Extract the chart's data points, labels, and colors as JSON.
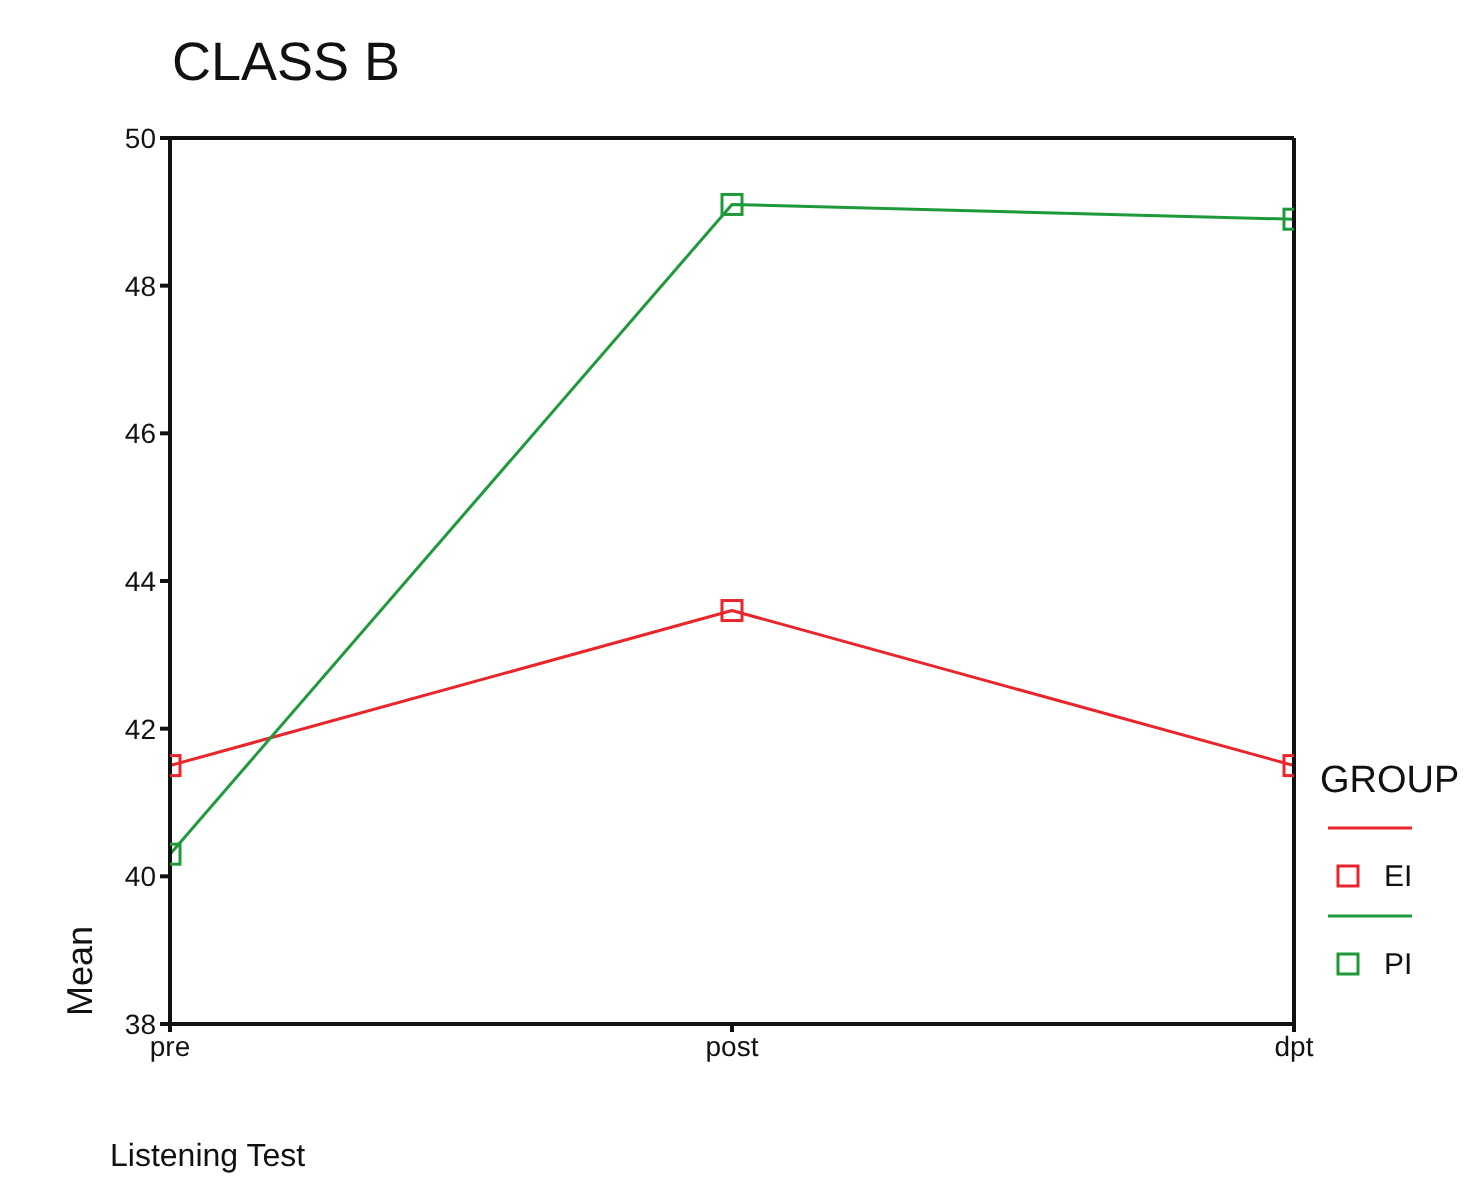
{
  "chart_data": {
    "type": "line",
    "title": "CLASS B",
    "xlabel": "Listening Test",
    "ylabel": "Mean",
    "legend_title": "GROUP",
    "categories": [
      "pre",
      "post",
      "dpt"
    ],
    "series": [
      {
        "name": "EI",
        "color": "#e8262c",
        "values": [
          41.5,
          43.6,
          41.5
        ]
      },
      {
        "name": "PI",
        "color": "#1e9a3a",
        "values": [
          40.3,
          49.1,
          48.9
        ]
      }
    ],
    "ylim": [
      38,
      50
    ],
    "yticks": [
      38,
      40,
      42,
      44,
      46,
      48,
      50
    ],
    "grid": false,
    "legend": "right",
    "marker": "square",
    "line_style": "solid"
  }
}
